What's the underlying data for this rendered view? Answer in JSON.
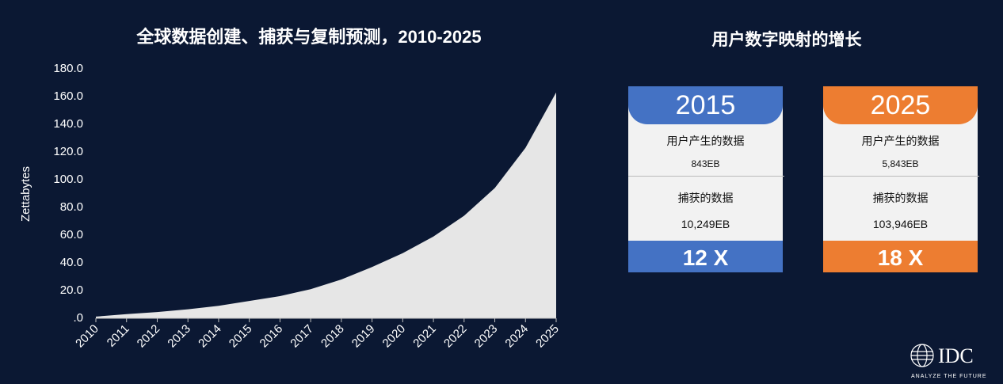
{
  "chart_data": {
    "type": "area",
    "title": "全球数据创建、捕获与复制预测，2010-2025",
    "y_label": "Zettabytes",
    "categories": [
      "2010",
      "2011",
      "2012",
      "2013",
      "2014",
      "2015",
      "2016",
      "2017",
      "2018",
      "2019",
      "2020",
      "2021",
      "2022",
      "2023",
      "2024",
      "2025"
    ],
    "values": [
      1.2,
      3,
      4.5,
      6.5,
      9,
      12.5,
      16,
      21,
      28,
      37,
      47,
      59,
      74,
      94,
      123,
      163
    ],
    "color": "#e6e6e6",
    "ylim": [
      0,
      180
    ],
    "yticks": [
      {
        "value": 0,
        "label": ".0"
      },
      {
        "value": 20,
        "label": "20.0"
      },
      {
        "value": 40,
        "label": "40.0"
      },
      {
        "value": 60,
        "label": "60.0"
      },
      {
        "value": 80,
        "label": "80.0"
      },
      {
        "value": 100,
        "label": "100.0"
      },
      {
        "value": 120,
        "label": "120.0"
      },
      {
        "value": 140,
        "label": "140.0"
      },
      {
        "value": 160,
        "label": "160.0"
      },
      {
        "value": 180,
        "label": "180.0"
      }
    ]
  },
  "panel": {
    "title": "用户数字映射的增长",
    "cards": [
      {
        "year": "2015",
        "label1": "用户产生的数据",
        "value1": "843EB",
        "label2": "捕获的数据",
        "value2": "10,249EB",
        "growth": "12 X",
        "color": "#4472c4"
      },
      {
        "year": "2025",
        "label1": "用户产生的数据",
        "value1": "5,843EB",
        "label2": "捕获的数据",
        "value2": "103,946EB",
        "growth": "18 X",
        "color": "#ed7d31"
      }
    ]
  },
  "logo": {
    "name": "IDC",
    "tagline": "ANALYZE THE FUTURE"
  }
}
